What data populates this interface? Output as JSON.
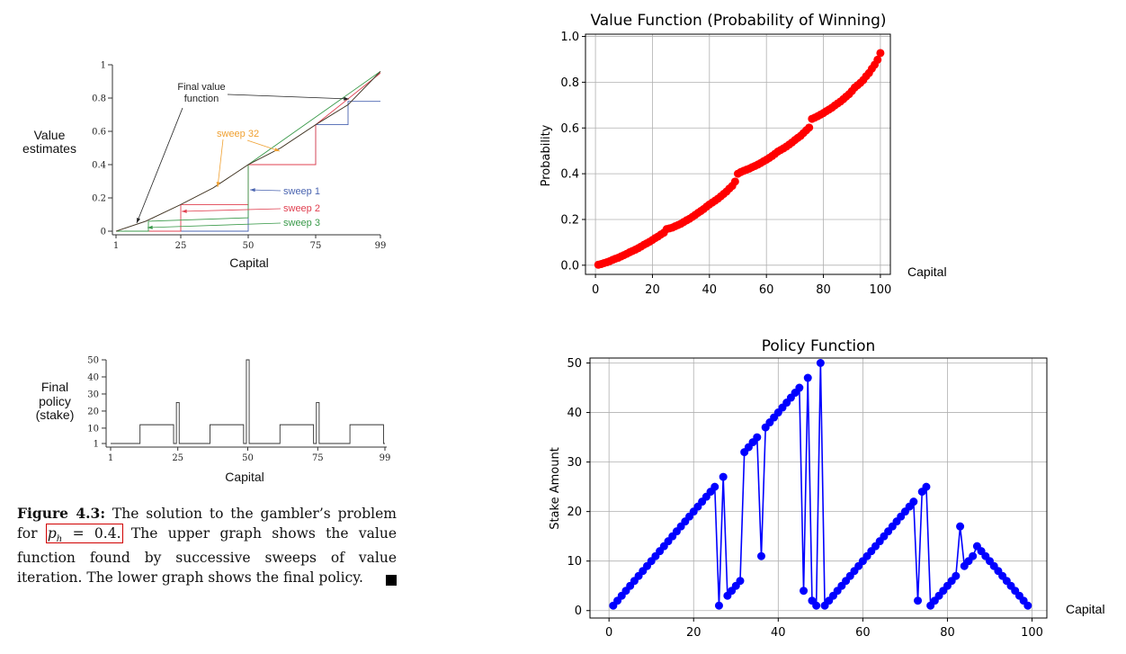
{
  "caption": {
    "label": "Figure 4.3:",
    "text_before": "The solution to the gambler’s problem for",
    "ph_text": "p",
    "ph_sub": "h",
    "ph_rest": " = 0.4.",
    "text_after": "The upper graph shows the value function found by successive sweeps of value iteration. The lower graph shows the final policy."
  },
  "chart_data": [
    {
      "type": "line",
      "panel": "book-value-estimates",
      "title": "",
      "xlabel": "Capital",
      "ylabel": "Value estimates",
      "xticks": [
        "1",
        "25",
        "50",
        "75",
        "99"
      ],
      "yticks": [
        "0",
        "0.2",
        "0.4",
        "0.6",
        "0.8",
        "1"
      ],
      "xlim": [
        1,
        99
      ],
      "ylim": [
        0,
        1
      ],
      "annotations": [
        "Final value function",
        "sweep 32",
        "sweep 1",
        "sweep 2",
        "sweep 3"
      ],
      "series": [
        {
          "name": "sweep 1",
          "color": "#4a64b0",
          "x": [
            1,
            49,
            50,
            74,
            75,
            86,
            87,
            99
          ],
          "y": [
            0.0,
            0.0,
            0.4,
            0.4,
            0.64,
            0.64,
            0.78,
            0.78
          ]
        },
        {
          "name": "sweep 2",
          "color": "#e04050",
          "x": [
            1,
            24,
            25,
            49,
            50,
            74,
            75,
            99
          ],
          "y": [
            0.0,
            0.0,
            0.16,
            0.16,
            0.4,
            0.4,
            0.64,
            0.95
          ]
        },
        {
          "name": "sweep 3",
          "color": "#3a9a4a",
          "x": [
            1,
            12,
            13,
            49,
            50,
            99
          ],
          "y": [
            0.0,
            0.0,
            0.06,
            0.08,
            0.4,
            0.96
          ]
        },
        {
          "name": "sweep 32",
          "color": "#f0a030",
          "x": [
            1,
            12,
            25,
            37,
            50,
            62,
            75,
            87,
            99
          ],
          "y": [
            0.0,
            0.06,
            0.16,
            0.26,
            0.4,
            0.5,
            0.64,
            0.76,
            0.96
          ]
        },
        {
          "name": "Final value function",
          "color": "#333333",
          "x": [
            1,
            12,
            25,
            37,
            50,
            62,
            75,
            87,
            99
          ],
          "y": [
            0.0,
            0.06,
            0.16,
            0.26,
            0.4,
            0.5,
            0.64,
            0.76,
            0.96
          ]
        }
      ]
    },
    {
      "type": "line",
      "panel": "book-final-policy",
      "title": "",
      "xlabel": "Capital",
      "ylabel": "Final policy (stake)",
      "xticks": [
        "1",
        "25",
        "50",
        "75",
        "99"
      ],
      "yticks": [
        "1",
        "10",
        "20",
        "30",
        "40",
        "50"
      ],
      "xlim": [
        1,
        99
      ],
      "ylim": [
        1,
        50
      ],
      "series": [
        {
          "name": "",
          "color": "#333333",
          "x": [
            1,
            12,
            13,
            24,
            25,
            26,
            37,
            38,
            49,
            50,
            51,
            62,
            63,
            74,
            75,
            76,
            87,
            88,
            99
          ],
          "y": [
            1,
            12,
            12,
            1,
            25,
            1,
            12,
            12,
            1,
            50,
            1,
            12,
            12,
            1,
            25,
            1,
            12,
            12,
            1
          ]
        }
      ]
    },
    {
      "type": "scatter",
      "panel": "value-function",
      "title": "Value Function (Probability of Winning)",
      "xlabel": "Capital",
      "ylabel": "Probability",
      "xticks": [
        "0",
        "20",
        "40",
        "60",
        "80",
        "100"
      ],
      "yticks": [
        "0.0",
        "0.2",
        "0.4",
        "0.6",
        "0.8",
        "1.0"
      ],
      "xlim": [
        -3.5,
        103.5
      ],
      "ylim": [
        -0.04,
        1.01
      ],
      "grid": true,
      "color": "#ff0000",
      "series": [
        {
          "name": "",
          "x_start": 1,
          "x_step": 1,
          "values": [
            0.0021,
            0.0052,
            0.0092,
            0.013,
            0.0177,
            0.0232,
            0.0285,
            0.0327,
            0.0386,
            0.0442,
            0.0501,
            0.0567,
            0.0624,
            0.0681,
            0.0745,
            0.0816,
            0.0893,
            0.0959,
            0.1028,
            0.1104,
            0.1189,
            0.1258,
            0.1346,
            0.1423,
            0.1581,
            0.1612,
            0.1647,
            0.1705,
            0.1758,
            0.1813,
            0.1891,
            0.1964,
            0.2029,
            0.2112,
            0.2199,
            0.2289,
            0.2371,
            0.2458,
            0.2563,
            0.2657,
            0.2739,
            0.2824,
            0.2909,
            0.3012,
            0.3119,
            0.3221,
            0.3353,
            0.3467,
            0.3656,
            0.4,
            0.4073,
            0.4126,
            0.4175,
            0.4222,
            0.4285,
            0.4341,
            0.4401,
            0.4469,
            0.4544,
            0.4613,
            0.4691,
            0.4775,
            0.4869,
            0.4968,
            0.5037,
            0.5109,
            0.5187,
            0.5277,
            0.5368,
            0.5474,
            0.5566,
            0.5655,
            0.5779,
            0.5901,
            0.6016,
            0.64,
            0.6453,
            0.6515,
            0.6584,
            0.6653,
            0.6735,
            0.6808,
            0.6887,
            0.6984,
            0.7073,
            0.7157,
            0.7262,
            0.7373,
            0.7478,
            0.7614,
            0.7769,
            0.7869,
            0.7975,
            0.8099,
            0.8262,
            0.8402,
            0.8591,
            0.8764,
            0.8983,
            0.9276
          ]
        }
      ]
    },
    {
      "type": "line",
      "panel": "policy-function",
      "title": "Policy Function",
      "xlabel": "Capital",
      "ylabel": "Stake Amount",
      "xticks": [
        "0",
        "20",
        "40",
        "60",
        "80",
        "100"
      ],
      "yticks": [
        "0",
        "10",
        "20",
        "30",
        "40",
        "50"
      ],
      "xlim": [
        -4.5,
        103.5
      ],
      "ylim": [
        -1.5,
        51
      ],
      "grid": true,
      "color": "#0000ff",
      "markers": true,
      "series": [
        {
          "name": "",
          "x_start": 1,
          "x_step": 1,
          "values": [
            1,
            2,
            3,
            4,
            5,
            6,
            7,
            8,
            9,
            10,
            11,
            12,
            13,
            14,
            15,
            16,
            17,
            18,
            19,
            20,
            21,
            22,
            23,
            24,
            25,
            1,
            27,
            3,
            4,
            5,
            6,
            32,
            33,
            34,
            35,
            11,
            37,
            38,
            39,
            40,
            41,
            42,
            43,
            44,
            45,
            4,
            47,
            2,
            1,
            50,
            1,
            2,
            3,
            4,
            5,
            6,
            7,
            8,
            9,
            10,
            11,
            12,
            13,
            14,
            15,
            16,
            17,
            18,
            19,
            20,
            21,
            22,
            2,
            24,
            25,
            1,
            2,
            3,
            4,
            5,
            6,
            7,
            17,
            9,
            10,
            11,
            13,
            12,
            11,
            10,
            9,
            8,
            7,
            6,
            5,
            4,
            3,
            2,
            1
          ]
        }
      ]
    }
  ]
}
